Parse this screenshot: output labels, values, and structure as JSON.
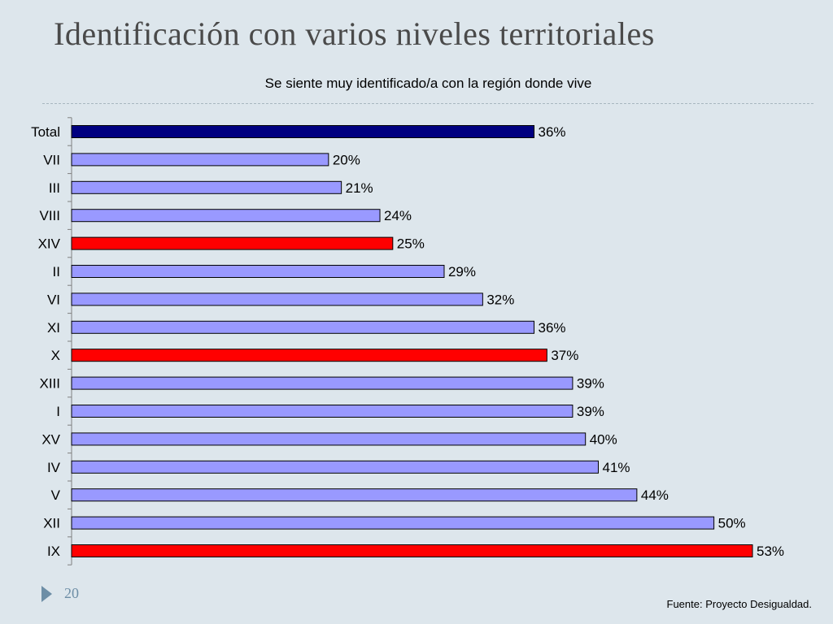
{
  "slide": {
    "title": "Identificación con varios niveles territoriales",
    "page_number": "20",
    "source": "Fuente: Proyecto Desigualdad."
  },
  "colors": {
    "background": "#dde6ec",
    "total": "#000080",
    "highlight": "#ff0000",
    "default": "#9999ff"
  },
  "chart_data": {
    "type": "bar",
    "orientation": "horizontal",
    "title": "Se siente muy identificado/a con la región donde vive",
    "xlabel": "",
    "ylabel": "",
    "xlim": [
      0,
      53
    ],
    "grid": false,
    "legend": "none",
    "categories": [
      "Total",
      "VII",
      "III",
      "VIII",
      "XIV",
      "II",
      "VI",
      "XI",
      "X",
      "XIII",
      "I",
      "XV",
      "IV",
      "V",
      "XII",
      "IX"
    ],
    "values": [
      36,
      20,
      21,
      24,
      25,
      29,
      32,
      36,
      37,
      39,
      39,
      40,
      41,
      44,
      50,
      53
    ],
    "value_labels": [
      "36%",
      "20%",
      "21%",
      "24%",
      "25%",
      "29%",
      "32%",
      "36%",
      "37%",
      "39%",
      "39%",
      "40%",
      "41%",
      "44%",
      "50%",
      "53%"
    ],
    "bar_colors": [
      "#000080",
      "#9999ff",
      "#9999ff",
      "#9999ff",
      "#ff0000",
      "#9999ff",
      "#9999ff",
      "#9999ff",
      "#ff0000",
      "#9999ff",
      "#9999ff",
      "#9999ff",
      "#9999ff",
      "#9999ff",
      "#9999ff",
      "#ff0000"
    ]
  }
}
